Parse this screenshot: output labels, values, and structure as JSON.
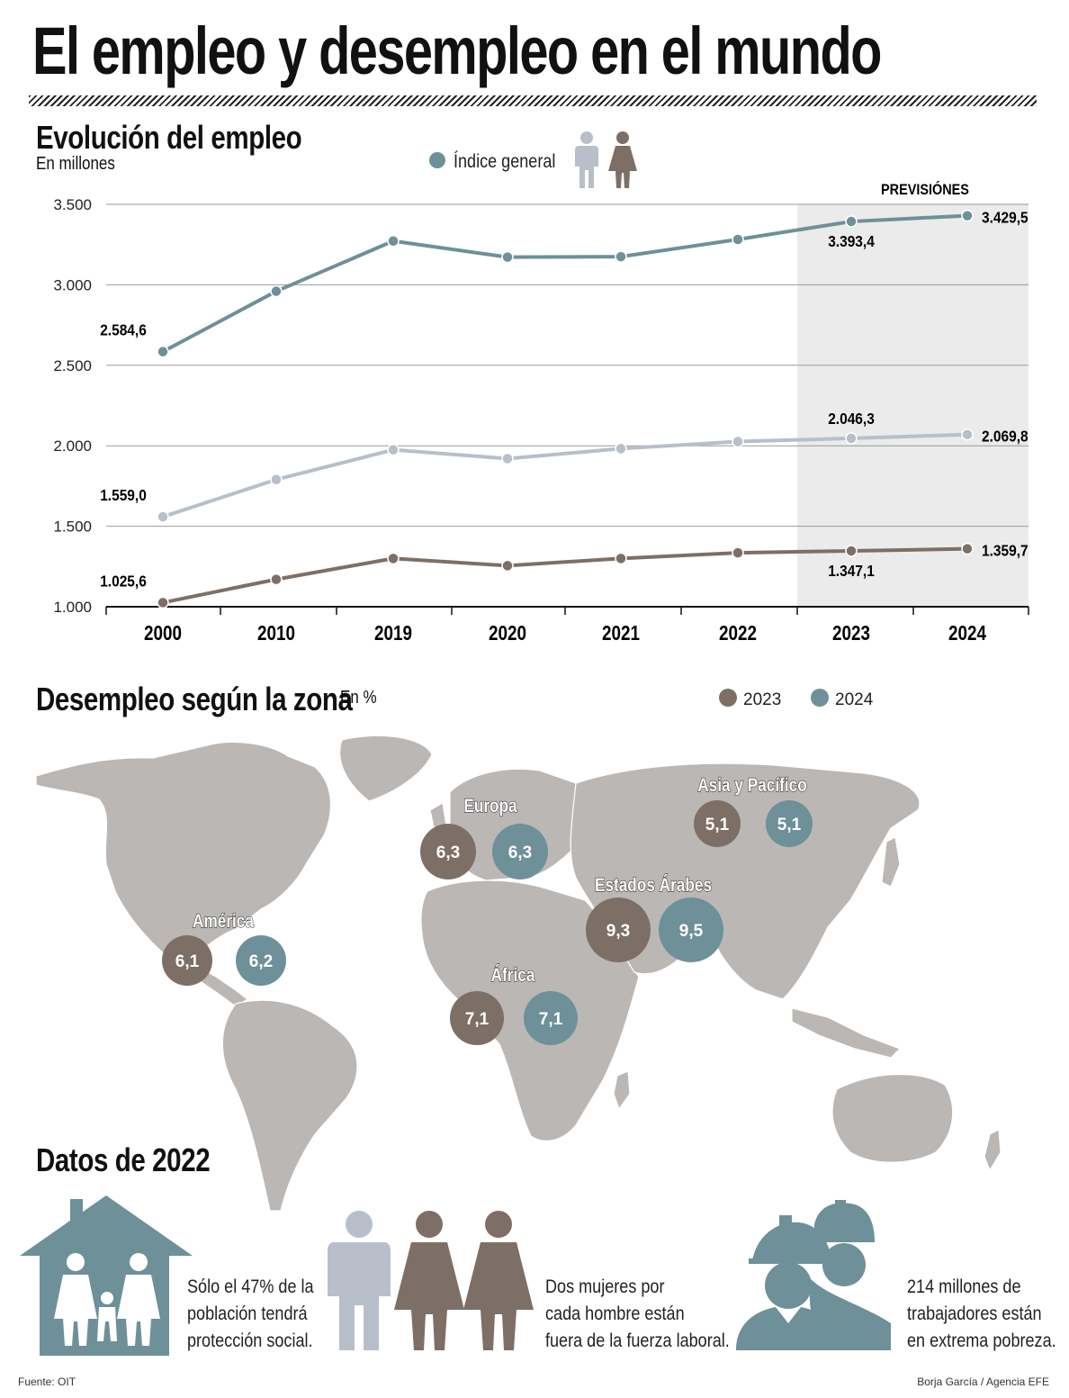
{
  "title": "El empleo y desempleo en el mundo",
  "colors": {
    "general": "#6e9098",
    "men": "#b8bfca",
    "women": "#7d6f66",
    "forecast_bg": "#ebebeb",
    "map": "#bab7b5"
  },
  "chart_data": [
    {
      "type": "line",
      "title": "Evolución del empleo",
      "subtitle": "En millones",
      "legend_label": "Índice general",
      "forecast_label": "PREVISIÓNES",
      "categories": [
        "2000",
        "2010",
        "2019",
        "2020",
        "2021",
        "2022",
        "2023",
        "2024"
      ],
      "forecast_categories": [
        "2023",
        "2024"
      ],
      "ylim": [
        1000,
        3500
      ],
      "yticks": [
        1000,
        1500,
        2000,
        2500,
        3000,
        3500
      ],
      "ytick_labels": [
        "1.000",
        "1.500",
        "2.000",
        "2.500",
        "3.000",
        "3.500"
      ],
      "series": [
        {
          "name": "Índice general",
          "values": [
            2584.6,
            2960,
            3272,
            3172,
            3175,
            3282,
            3393.4,
            3429.5
          ]
        },
        {
          "name": "Hombres",
          "values": [
            1559.0,
            1790,
            1975,
            1920,
            1982,
            2026,
            2046.3,
            2069.8
          ]
        },
        {
          "name": "Mujeres",
          "values": [
            1025.6,
            1170,
            1300,
            1255,
            1300,
            1335,
            1347.1,
            1359.7
          ]
        }
      ],
      "data_labels": [
        {
          "series": 0,
          "index": 0,
          "text": "2.584,6"
        },
        {
          "series": 0,
          "index": 6,
          "text": "3.393,4"
        },
        {
          "series": 0,
          "index": 7,
          "text": "3.429,5"
        },
        {
          "series": 1,
          "index": 0,
          "text": "1.559,0"
        },
        {
          "series": 1,
          "index": 6,
          "text": "2.046,3"
        },
        {
          "series": 1,
          "index": 7,
          "text": "2.069,8"
        },
        {
          "series": 2,
          "index": 0,
          "text": "1.025,6"
        },
        {
          "series": 2,
          "index": 6,
          "text": "1.347,1"
        },
        {
          "series": 2,
          "index": 7,
          "text": "1.359,7"
        }
      ]
    },
    {
      "type": "bubble-map",
      "title": "Desempleo según la zona",
      "subtitle": "En %",
      "legend": [
        "2023",
        "2024"
      ],
      "regions": [
        {
          "name": "América",
          "v2023": "6,1",
          "v2024": "6,2"
        },
        {
          "name": "Europa",
          "v2023": "6,3",
          "v2024": "6,3"
        },
        {
          "name": "Asia y Pacífico",
          "v2023": "5,1",
          "v2024": "5,1"
        },
        {
          "name": "Estados Árabes",
          "v2023": "9,3",
          "v2024": "9,5"
        },
        {
          "name": "África",
          "v2023": "7,1",
          "v2024": "7,1"
        }
      ]
    }
  ],
  "datos": {
    "title": "Datos de 2022",
    "stat1": [
      "Sólo el 47% de la",
      "población tendrá",
      "protección social."
    ],
    "stat2": [
      "Dos mujeres por",
      "cada hombre están",
      "fuera de la fuerza laboral."
    ],
    "stat3": [
      "214 millones de",
      "trabajadores están",
      "en extrema pobreza."
    ]
  },
  "footer": {
    "source": "Fuente: OIT",
    "credit": "Borja García / Agencia EFE"
  }
}
